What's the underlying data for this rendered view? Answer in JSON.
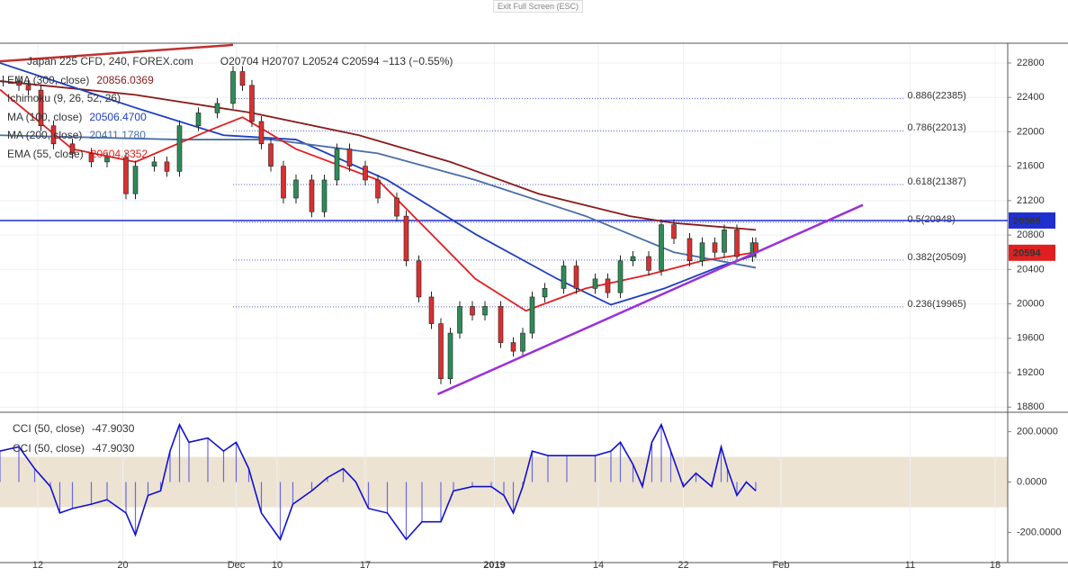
{
  "exit_label": "Exit Full Screen (ESC)",
  "chart_data": [
    {
      "type": "candlestick",
      "title": "Japan 225 CFD, 240, FOREX.com",
      "subtitle": "O20704 H20707 L20524 C20594 −113 (−0.55%)",
      "xlim": [
        0,
        320
      ],
      "ylim": [
        18740,
        23030
      ],
      "xticks": [
        {
          "value": 12,
          "label": "12"
        },
        {
          "value": 39,
          "label": "20"
        },
        {
          "value": 75,
          "label": "Dec"
        },
        {
          "value": 88,
          "label": "10"
        },
        {
          "value": 116,
          "label": "17"
        },
        {
          "value": 157,
          "label": "2019"
        },
        {
          "value": 190,
          "label": "14"
        },
        {
          "value": 217,
          "label": "22"
        },
        {
          "value": 248,
          "label": "Feb"
        },
        {
          "value": 289,
          "label": "11"
        },
        {
          "value": 316,
          "label": "18"
        }
      ],
      "yticks": [
        18800,
        19200,
        19600,
        20000,
        20400,
        20800,
        21200,
        21600,
        22000,
        22400,
        22800
      ],
      "grid": true,
      "up_color": "#2e8b57",
      "down_color": "#d93030",
      "x": [
        1,
        6,
        9,
        13,
        17,
        23,
        29,
        34,
        40,
        43,
        49,
        53,
        57,
        63,
        69,
        74,
        77,
        80,
        83,
        86,
        90,
        94,
        99,
        103,
        107,
        111,
        116,
        120,
        126,
        129,
        133,
        137,
        140,
        143,
        146,
        150,
        154,
        159,
        163,
        166,
        169,
        173,
        179,
        183,
        189,
        193,
        197,
        201,
        206,
        210,
        214,
        219,
        223,
        227,
        230,
        234,
        239,
        240
      ],
      "values": [
        22590,
        22540,
        22485,
        22070,
        21860,
        21750,
        21650,
        21700,
        21280,
        21600,
        21650,
        21540,
        22070,
        22220,
        22330,
        22700,
        22540,
        22120,
        21860,
        21600,
        21230,
        21440,
        21070,
        21440,
        21800,
        21600,
        21440,
        21230,
        21020,
        20500,
        20080,
        19770,
        19130,
        19660,
        19970,
        19870,
        19970,
        19550,
        19450,
        19660,
        20080,
        20180,
        20440,
        20180,
        20290,
        20130,
        20500,
        20550,
        20390,
        20920,
        20760,
        20500,
        20710,
        20600,
        20860,
        20550,
        20710,
        20594
      ],
      "series": [
        {
          "name": "EMA (300, close)",
          "last": "20856.0369",
          "color": "#8b1a1a",
          "x": [
            0,
            43,
            80,
            114,
            143,
            171,
            200,
            214,
            240
          ],
          "values": [
            22590,
            22430,
            22220,
            21960,
            21650,
            21280,
            21020,
            20940,
            20860
          ]
        },
        {
          "name": "Ichimoku (9, 26, 52, 26)",
          "color": "#555555"
        },
        {
          "name": "MA (100, close)",
          "last": "20506.4700",
          "color": "#1f3fbf",
          "x": [
            0,
            43,
            71,
            94,
            123,
            151,
            177,
            194,
            211,
            229,
            240
          ],
          "values": [
            22800,
            22280,
            21960,
            21910,
            21440,
            20810,
            20290,
            19990,
            20180,
            20440,
            20570
          ]
        },
        {
          "name": "MA (200, close)",
          "last": "20411.1780",
          "color": "#4a6fa5",
          "x": [
            0,
            57,
            86,
            120,
            151,
            186,
            214,
            240
          ],
          "values": [
            21960,
            21910,
            21910,
            21750,
            21440,
            21020,
            20600,
            20420
          ]
        },
        {
          "name": "EMA (55, close)",
          "last": "20604.3352",
          "color": "#e02020",
          "x": [
            0,
            23,
            43,
            66,
            77,
            94,
            120,
            137,
            151,
            167,
            186,
            206,
            223,
            240
          ],
          "values": [
            22490,
            21800,
            21650,
            22010,
            22170,
            21800,
            21440,
            20810,
            20290,
            19920,
            20180,
            20340,
            20500,
            20600
          ]
        }
      ],
      "fib_levels": [
        {
          "value": 22385,
          "label": "0.886(22385)",
          "color": "#333333"
        },
        {
          "value": 22013,
          "label": "0.786(22013)",
          "color": "#3a3aa0"
        },
        {
          "value": 21387,
          "label": "0.618(21387)",
          "color": "#3a3aa0"
        },
        {
          "value": 20948,
          "label": "0.5(20948)",
          "color": "#4c9a2a"
        },
        {
          "value": 20509,
          "label": "0.382(20509)",
          "color": "#3a3aa0"
        },
        {
          "value": 19965,
          "label": "0.236(19965)",
          "color": "#3a3aa0"
        }
      ],
      "fib_x": [
        74,
        287
      ],
      "hline": {
        "value": 20969,
        "label": "20969",
        "color": "#1f2fd0"
      },
      "last_price": {
        "value": 20594,
        "label": "20594",
        "color": "#e02020"
      },
      "trendlines": [
        {
          "x": [
            139,
            274
          ],
          "values": [
            18950,
            21150
          ],
          "color": "#9b30d9"
        },
        {
          "x": [
            0,
            74
          ],
          "values": [
            22820,
            23010
          ],
          "color": "#c03030"
        }
      ]
    },
    {
      "type": "line",
      "xlim": [
        0,
        320
      ],
      "ylim": [
        -320,
        270
      ],
      "yticks": [
        {
          "value": 200,
          "label": "200.0000"
        },
        {
          "value": 0,
          "label": "0.0000"
        },
        {
          "value": -200,
          "label": "-200.0000"
        }
      ],
      "band": [
        -100,
        100
      ],
      "band_color": "#ede3d2",
      "series": [
        {
          "name": "CCI (50, close)",
          "last": "-47.9030",
          "color": "#1010d0",
          "style": "line",
          "x": [
            0,
            6,
            11,
            16,
            19,
            23,
            29,
            34,
            40,
            43,
            47,
            51,
            54,
            57,
            60,
            66,
            71,
            75,
            79,
            83,
            89,
            93,
            99,
            104,
            109,
            113,
            117,
            123,
            129,
            134,
            140,
            144,
            150,
            156,
            160,
            163,
            166,
            169,
            174,
            180,
            189,
            194,
            197,
            201,
            204,
            207,
            210,
            213,
            217,
            221,
            226,
            229,
            231,
            234,
            237,
            240
          ],
          "values": [
            123,
            140,
            53,
            -18,
            -123,
            -105,
            -88,
            -70,
            -123,
            -210,
            -53,
            -35,
            123,
            228,
            158,
            175,
            123,
            158,
            53,
            -123,
            -228,
            -88,
            -35,
            18,
            53,
            0,
            -105,
            -123,
            -228,
            -158,
            -158,
            -35,
            -18,
            -18,
            -53,
            -123,
            -18,
            123,
            105,
            105,
            105,
            123,
            158,
            70,
            -18,
            158,
            228,
            123,
            -18,
            35,
            -18,
            140,
            53,
            -53,
            0,
            -35
          ]
        },
        {
          "name": "CCI (50, close)",
          "last": "-47.9030",
          "color": "#6a6ae0",
          "style": "histogram"
        }
      ]
    }
  ]
}
